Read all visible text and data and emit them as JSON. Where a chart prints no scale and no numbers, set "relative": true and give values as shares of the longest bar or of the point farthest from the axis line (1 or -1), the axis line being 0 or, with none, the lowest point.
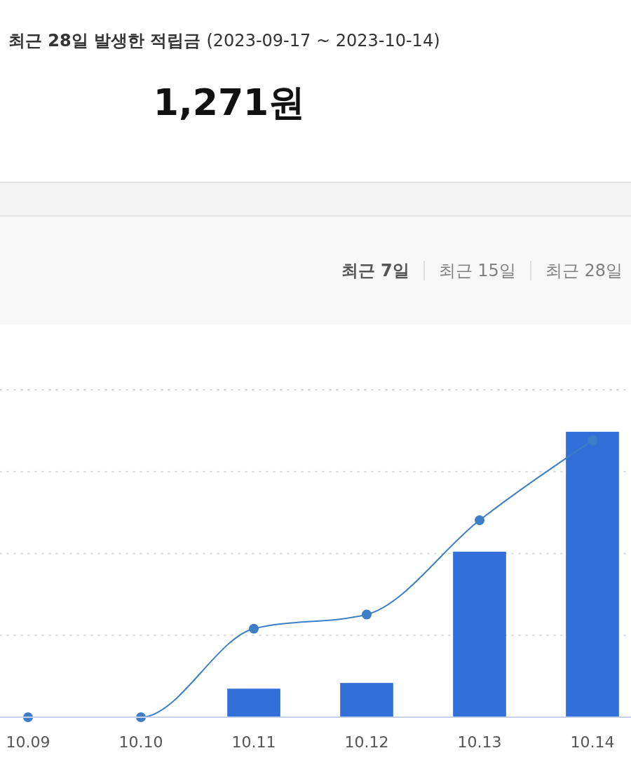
{
  "chart_data": {
    "type": "bar",
    "title": "최근 28일 발생한 적립금",
    "subtitle": "(2023-09-17 ~ 2023-10-14)",
    "annotations": [
      "1,271원",
      "최근 7일",
      "최근 15일",
      "최근 28일"
    ],
    "categories": [
      "10.09",
      "10.10",
      "10.11",
      "10.12",
      "10.13",
      "10.14"
    ],
    "relative": true,
    "series": [
      {
        "color": "#336fd9",
        "values": [
          0,
          0,
          0.1,
          0.12,
          0.58,
          1
        ]
      },
      {
        "type": "line",
        "color": "#3d7fc6",
        "values": [
          0,
          0,
          0.31,
          0.36,
          0.69,
          0.97
        ]
      }
    ],
    "marker": "circle",
    "grid": "y"
  }
}
